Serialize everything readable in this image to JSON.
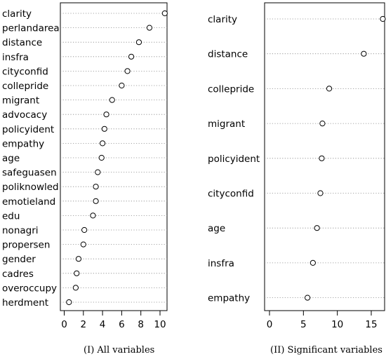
{
  "chart_data": [
    {
      "type": "scatter",
      "subtype": "dotchart",
      "caption": "(I) All variables",
      "categories": [
        "clarity",
        "perlandarea",
        "distance",
        "insfra",
        "cityconfid",
        "collepride",
        "migrant",
        "advocacy",
        "policyident",
        "empathy",
        "age",
        "safeguasen",
        "poliknowled",
        "emotieland",
        "edu",
        "nonagri",
        "propersen",
        "gender",
        "cadres",
        "overoccupy",
        "herdment"
      ],
      "values": [
        10.5,
        8.9,
        7.8,
        7.0,
        6.6,
        6.0,
        5.0,
        4.4,
        4.2,
        4.0,
        3.9,
        3.5,
        3.3,
        3.3,
        3.0,
        2.1,
        2.0,
        1.5,
        1.3,
        1.2,
        0.5
      ],
      "xticks": [
        0,
        2,
        4,
        6,
        8,
        10
      ],
      "xlim": [
        -0.5,
        10.9
      ],
      "grid": "dotted horizontal guide lines"
    },
    {
      "type": "scatter",
      "subtype": "dotchart",
      "caption": "(II) Significant variables",
      "categories": [
        "clarity",
        "distance",
        "collepride",
        "migrant",
        "policyident",
        "cityconfid",
        "age",
        "insfra",
        "empathy"
      ],
      "values": [
        16.7,
        13.9,
        8.8,
        7.8,
        7.7,
        7.5,
        7.0,
        6.4,
        5.6
      ],
      "xticks": [
        0,
        5,
        10,
        15
      ],
      "xlim": [
        -0.6,
        17.3
      ],
      "grid": "dotted horizontal guide lines"
    }
  ]
}
